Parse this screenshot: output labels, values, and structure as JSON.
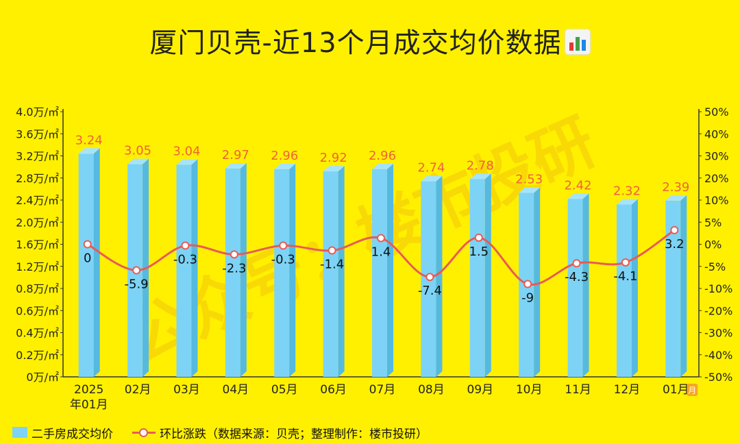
{
  "title": "厦门贝壳-近13个月成交均价数据",
  "title_icon": "bar-chart-icon",
  "watermark": "公众号：楼市投研",
  "chart_data": {
    "type": "bar",
    "categories": [
      "2025\n年01月",
      "02月",
      "03月",
      "04月",
      "05月",
      "06月",
      "07月",
      "08月",
      "09月",
      "10月",
      "11月",
      "12月",
      "01月"
    ],
    "last_category_badge": "月",
    "series": [
      {
        "name": "二手房成交均价",
        "type": "bar",
        "axis": "left",
        "values": [
          3.24,
          3.05,
          3.04,
          2.97,
          2.96,
          2.92,
          2.96,
          2.74,
          2.78,
          2.53,
          2.42,
          2.32,
          2.39
        ],
        "labels": [
          "3.24",
          "3.05",
          "3.04",
          "2.97",
          "2.96",
          "2.92",
          "2.96",
          "2.74",
          "2.78",
          "2.53",
          "2.42",
          "2.32",
          "2.39"
        ],
        "color": "#7DD3F5"
      },
      {
        "name": "环比涨跌（数据来源：贝壳；整理制作：楼市投研）",
        "type": "line",
        "axis": "right",
        "values": [
          0,
          -5.9,
          -0.3,
          -2.3,
          -0.3,
          -1.4,
          1.4,
          -7.4,
          1.5,
          -9,
          -4.3,
          -4.1,
          3.2
        ],
        "labels": [
          "0",
          "-5.9",
          "-0.3",
          "-2.3",
          "-0.3",
          "-1.4",
          "1.4",
          "-7.4",
          "1.5",
          "-9",
          "-4.3",
          "-4.1",
          "3.2"
        ],
        "color": "#E85B55"
      }
    ],
    "y_left": {
      "range": [
        0,
        4.0
      ],
      "ticks": [
        "0万/㎡",
        "0.2万/㎡",
        "0.4万/㎡",
        "0.6万/㎡",
        "0.8万/㎡",
        "1.2万/㎡",
        "1.6万/㎡",
        "2.0万/㎡",
        "2.4万/㎡",
        "2.8万/㎡",
        "3.2万/㎡",
        "3.6万/㎡",
        "4.0万/㎡"
      ]
    },
    "y_right": {
      "range": [
        -50,
        50
      ],
      "ticks": [
        "-50%",
        "-40%",
        "-30%",
        "-20%",
        "-10%",
        "-5%",
        "0%",
        "5%",
        "10%",
        "20%",
        "30%",
        "40%",
        "50%"
      ]
    },
    "bar_label_color": "#F0623A",
    "line_label_color": "#111111",
    "legend_position": "bottom-left",
    "grid": false
  }
}
